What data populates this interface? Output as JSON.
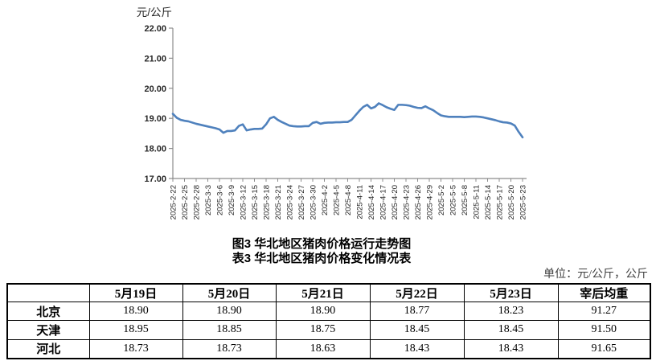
{
  "titles": {
    "figure": "图3 华北地区猪肉价格运行走势图",
    "table": "表3 华北地区猪肉价格变化情况表"
  },
  "unit_note": "单位：元/公斤，公斤",
  "chart_data": {
    "type": "line",
    "title": "图3 华北地区猪肉价格运行走势图",
    "ylabel": "元/公斤",
    "xlabel": "",
    "ylim": [
      17,
      22
    ],
    "grid": false,
    "legend": "none",
    "line_color": "#4F81BD",
    "axis_color": "#8c8c8c",
    "tick_text_color": "#262626",
    "y_tick_labels": [
      "22.00",
      "21.00",
      "20.00",
      "19.00",
      "18.00",
      "17.00"
    ],
    "x_tick_every_n_points": 3,
    "x_tick_labels": [
      "2025-2-22",
      "2025-2-25",
      "2025-2-28",
      "2025-3-3",
      "2025-3-6",
      "2025-3-9",
      "2025-3-12",
      "2025-3-15",
      "2025-3-18",
      "2025-3-21",
      "2025-3-24",
      "2025-3-27",
      "2025-3-30",
      "2025-4-2",
      "2025-4-5",
      "2025-4-8",
      "2025-4-11",
      "2025-4-14",
      "2025-4-17",
      "2025-4-20",
      "2025-4-23",
      "2025-4-26",
      "2025-4-29",
      "2025-5-2",
      "2025-5-5",
      "2025-5-8",
      "2025-5-11",
      "2025-5-14",
      "2025-5-17",
      "2025-5-20",
      "2025-5-23"
    ],
    "series": [
      {
        "name": "华北地区猪肉价格",
        "x": [
          "2025-2-22",
          "2025-2-23",
          "2025-2-24",
          "2025-2-25",
          "2025-2-26",
          "2025-2-27",
          "2025-2-28",
          "2025-3-1",
          "2025-3-2",
          "2025-3-3",
          "2025-3-4",
          "2025-3-5",
          "2025-3-6",
          "2025-3-7",
          "2025-3-8",
          "2025-3-9",
          "2025-3-10",
          "2025-3-11",
          "2025-3-12",
          "2025-3-13",
          "2025-3-14",
          "2025-3-15",
          "2025-3-16",
          "2025-3-17",
          "2025-3-18",
          "2025-3-19",
          "2025-3-20",
          "2025-3-21",
          "2025-3-22",
          "2025-3-23",
          "2025-3-24",
          "2025-3-25",
          "2025-3-26",
          "2025-3-27",
          "2025-3-28",
          "2025-3-29",
          "2025-3-30",
          "2025-3-31",
          "2025-4-1",
          "2025-4-2",
          "2025-4-3",
          "2025-4-4",
          "2025-4-5",
          "2025-4-6",
          "2025-4-7",
          "2025-4-8",
          "2025-4-9",
          "2025-4-10",
          "2025-4-11",
          "2025-4-12",
          "2025-4-13",
          "2025-4-14",
          "2025-4-15",
          "2025-4-16",
          "2025-4-17",
          "2025-4-18",
          "2025-4-19",
          "2025-4-20",
          "2025-4-21",
          "2025-4-22",
          "2025-4-23",
          "2025-4-24",
          "2025-4-25",
          "2025-4-26",
          "2025-4-27",
          "2025-4-28",
          "2025-4-29",
          "2025-4-30",
          "2025-5-1",
          "2025-5-2",
          "2025-5-3",
          "2025-5-4",
          "2025-5-5",
          "2025-5-6",
          "2025-5-7",
          "2025-5-8",
          "2025-5-9",
          "2025-5-10",
          "2025-5-11",
          "2025-5-12",
          "2025-5-13",
          "2025-5-14",
          "2025-5-15",
          "2025-5-16",
          "2025-5-17",
          "2025-5-18",
          "2025-5-19",
          "2025-5-20",
          "2025-5-21",
          "2025-5-22",
          "2025-5-23"
        ],
        "values": [
          19.15,
          19.02,
          18.95,
          18.92,
          18.9,
          18.86,
          18.82,
          18.79,
          18.76,
          18.73,
          18.7,
          18.67,
          18.63,
          18.52,
          18.58,
          18.58,
          18.6,
          18.75,
          18.8,
          18.6,
          18.63,
          18.65,
          18.65,
          18.66,
          18.8,
          19.0,
          19.05,
          18.95,
          18.88,
          18.82,
          18.76,
          18.74,
          18.73,
          18.73,
          18.74,
          18.74,
          18.85,
          18.88,
          18.82,
          18.85,
          18.86,
          18.86,
          18.87,
          18.87,
          18.88,
          18.88,
          18.95,
          19.1,
          19.25,
          19.38,
          19.45,
          19.33,
          19.38,
          19.5,
          19.44,
          19.37,
          19.32,
          19.28,
          19.45,
          19.45,
          19.44,
          19.42,
          19.38,
          19.35,
          19.34,
          19.4,
          19.33,
          19.27,
          19.18,
          19.1,
          19.07,
          19.05,
          19.05,
          19.05,
          19.05,
          19.04,
          19.05,
          19.06,
          19.06,
          19.05,
          19.03,
          19.0,
          18.97,
          18.94,
          18.9,
          18.87,
          18.86,
          18.83,
          18.76,
          18.55,
          18.37
        ]
      }
    ]
  },
  "table": {
    "headers": [
      "",
      "5月19日",
      "5月20日",
      "5月21日",
      "5月22日",
      "5月23日",
      "宰后均重"
    ],
    "rows": [
      {
        "region": "北京",
        "values": [
          "18.90",
          "18.90",
          "18.90",
          "18.77",
          "18.23",
          "91.27"
        ]
      },
      {
        "region": "天津",
        "values": [
          "18.95",
          "18.85",
          "18.75",
          "18.45",
          "18.45",
          "91.50"
        ]
      },
      {
        "region": "河北",
        "values": [
          "18.73",
          "18.73",
          "18.63",
          "18.43",
          "18.43",
          "91.65"
        ]
      }
    ]
  }
}
